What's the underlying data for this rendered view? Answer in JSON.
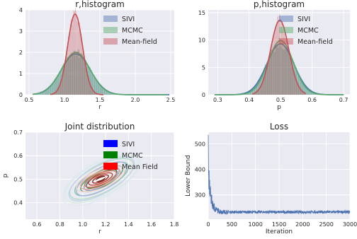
{
  "chart_data": [
    {
      "type": "histogram",
      "title": "r,histogram",
      "xlabel": "r",
      "ylabel": "",
      "xlim": [
        0.45,
        2.55
      ],
      "ylim": [
        0,
        4
      ],
      "xticks": [
        "0.5",
        "1.0",
        "1.5",
        "2.0",
        "2.5"
      ],
      "yticks": [
        "0",
        "1",
        "2",
        "3",
        "4"
      ],
      "legend_position": "top-right",
      "series": [
        {
          "name": "SIVI",
          "color": "#4c72b0",
          "mean": 1.16,
          "sd": 0.205,
          "peak_density": 1.93,
          "x_range": [
            0.55,
            2.48
          ]
        },
        {
          "name": "MCMC",
          "color": "#55a868",
          "mean": 1.16,
          "sd": 0.2,
          "peak_density": 2.0,
          "x_range": [
            0.55,
            2.45
          ]
        },
        {
          "name": "Mean-field",
          "color": "#c44e52",
          "mean": 1.15,
          "sd": 0.105,
          "peak_density": 3.8,
          "x_range": [
            0.8,
            1.55
          ]
        }
      ]
    },
    {
      "type": "histogram",
      "title": "p,histogram",
      "xlabel": "p",
      "ylabel": "",
      "xlim": [
        0.27,
        0.72
      ],
      "ylim": [
        0,
        15.5
      ],
      "xticks": [
        "0.3",
        "0.4",
        "0.5",
        "0.6",
        "0.7"
      ],
      "yticks": [
        "0",
        "5",
        "10",
        "15"
      ],
      "legend_position": "top-right",
      "series": [
        {
          "name": "SIVI",
          "color": "#4c72b0",
          "mean": 0.499,
          "sd": 0.043,
          "peak_density": 9.3,
          "x_range": [
            0.29,
            0.7
          ]
        },
        {
          "name": "MCMC",
          "color": "#55a868",
          "mean": 0.5,
          "sd": 0.04,
          "peak_density": 9.9,
          "x_range": [
            0.29,
            0.7
          ]
        },
        {
          "name": "Mean-field",
          "color": "#c44e52",
          "mean": 0.497,
          "sd": 0.029,
          "peak_density": 13.6,
          "x_range": [
            0.41,
            0.58
          ]
        }
      ]
    },
    {
      "type": "contour",
      "title": "Joint distribution",
      "xlabel": "r",
      "ylabel": "p",
      "xlim": [
        0.5,
        1.8
      ],
      "ylim": [
        0.33,
        0.7
      ],
      "xticks": [
        "0.6",
        "0.8",
        "1.0",
        "1.2",
        "1.4",
        "1.6",
        "1.8"
      ],
      "yticks": [
        "0.4",
        "0.5",
        "0.6",
        "0.7"
      ],
      "legend_position": "top-right",
      "series": [
        {
          "name": "SIVI",
          "color": "#0000ff",
          "center": [
            1.16,
            0.5
          ],
          "angle_deg": -30
        },
        {
          "name": "MCMC",
          "color": "#008000",
          "center": [
            1.16,
            0.5
          ],
          "angle_deg": -30
        },
        {
          "name": "Mean Field",
          "color": "#ff0000",
          "center": [
            1.15,
            0.5
          ],
          "angle_deg": -22
        }
      ]
    },
    {
      "type": "line",
      "title": "Loss",
      "xlabel": "Iteration",
      "ylabel": "Lower Bound",
      "xlim": [
        0,
        3000
      ],
      "ylim": [
        205,
        545
      ],
      "xticks": [
        "0",
        "500",
        "1000",
        "1500",
        "2000",
        "2500",
        "3000"
      ],
      "yticks": [
        "300",
        "400",
        "500"
      ],
      "series": [
        {
          "name": "",
          "color": "#4c72b0",
          "start_value": 535,
          "plateau_value": 233,
          "decay_iterations": 60
        }
      ]
    }
  ]
}
